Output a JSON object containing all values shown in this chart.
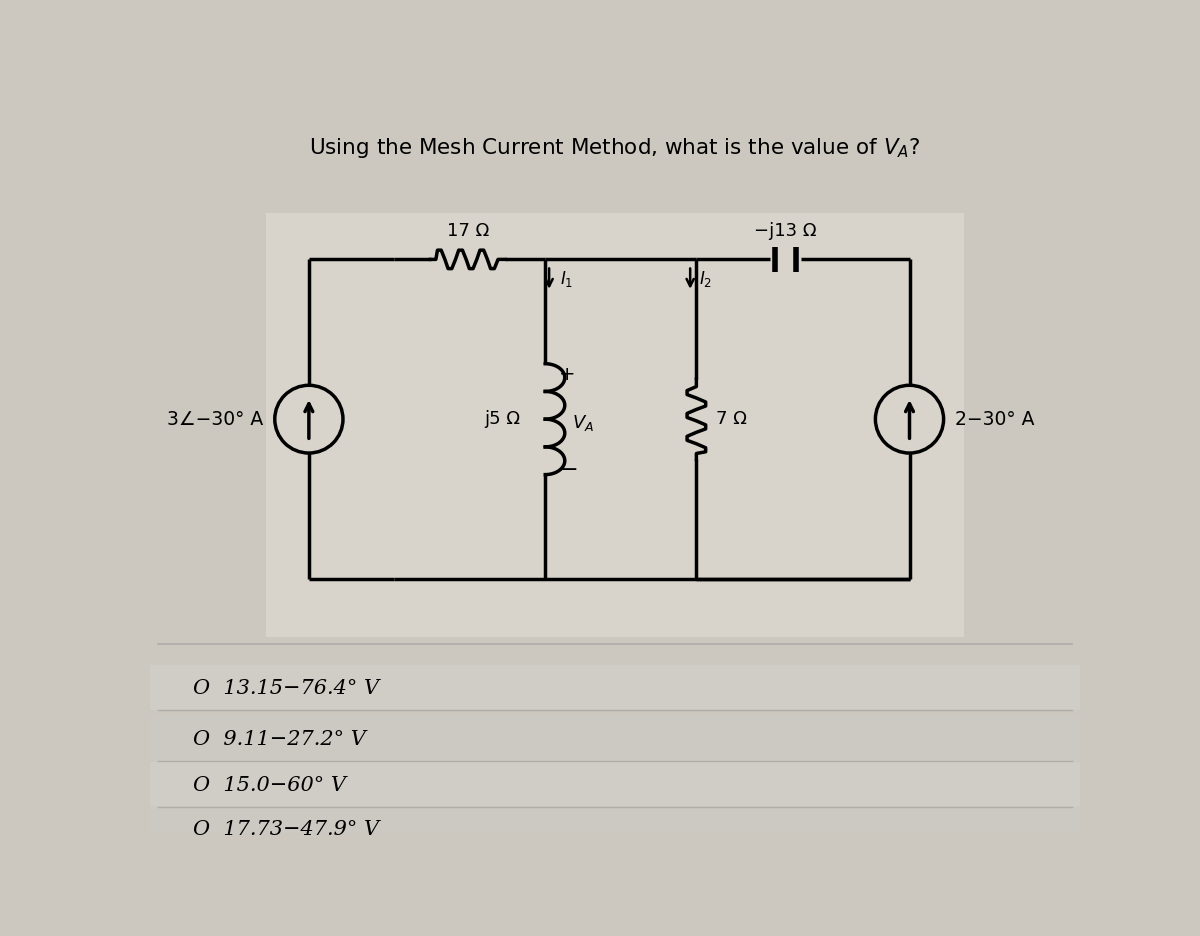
{
  "title": "Using the Mesh Current Method, what is the value of $V_A$?",
  "title_fontsize": 15.5,
  "bg_color": "#ccc8c0",
  "circuit_bg": "#ddd8d0",
  "options": [
    "O  13.15−76.4° V",
    "O  9.11−27.2° V",
    "O  15.0−60° V",
    "O  17.73−47.9° V"
  ],
  "opt_bg": "#d0ccc8",
  "sep_color": "#b0aca8",
  "lc": "#000000",
  "lw": 2.5,
  "r1_label": "17 Ω",
  "c1_label": "−j13 Ω",
  "ind_label": "j5 Ω",
  "r2_label": "7 Ω",
  "left_src": "3∠−30° A",
  "right_src": "2−30° A",
  "i1_label": "$I_1$",
  "i2_label": "$I_2$",
  "plus": "+",
  "minus": "−",
  "va": "$V_A$"
}
